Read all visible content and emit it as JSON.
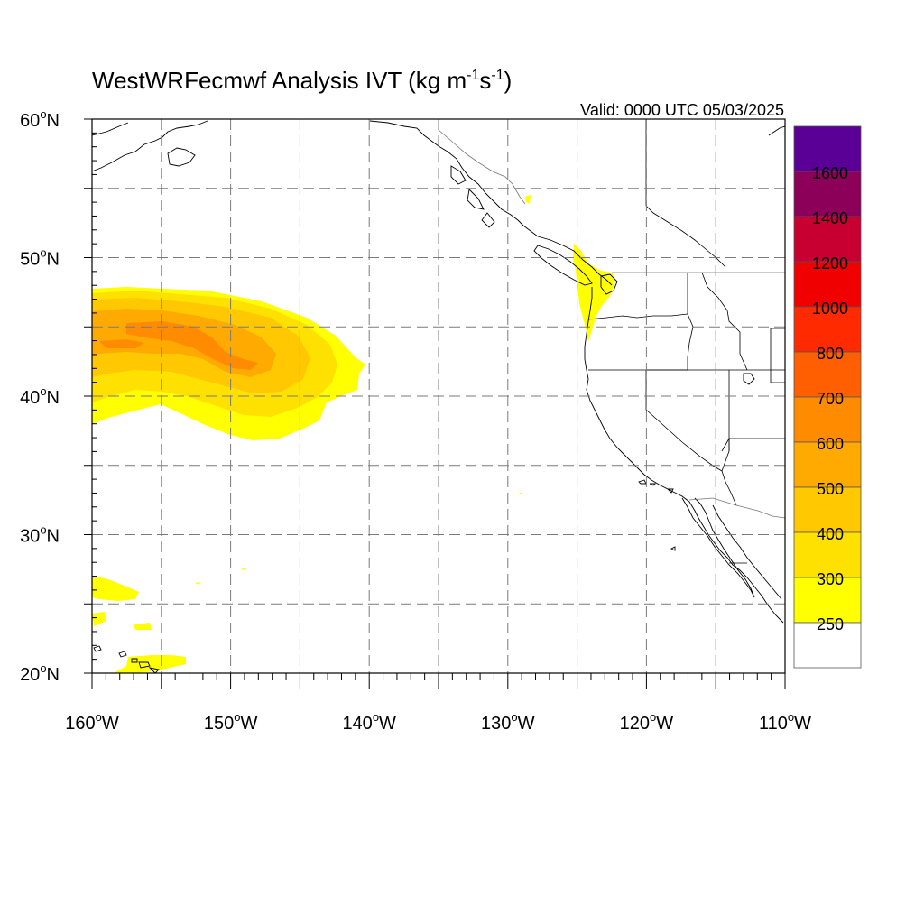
{
  "title": {
    "main": "WestWRFecmwf Analysis IVT (kg m",
    "exp1": "-1",
    "mid": "s",
    "exp2": "-1",
    "end": ")"
  },
  "valid_time": "Valid: 0000 UTC 05/03/2025",
  "map": {
    "lon_range": [
      -160,
      -110
    ],
    "lat_range": [
      20,
      60
    ],
    "lon_ticks": [
      {
        "value": -160,
        "num": "160",
        "suffix": "W"
      },
      {
        "value": -150,
        "num": "150",
        "suffix": "W"
      },
      {
        "value": -140,
        "num": "140",
        "suffix": "W"
      },
      {
        "value": -130,
        "num": "130",
        "suffix": "W"
      },
      {
        "value": -120,
        "num": "120",
        "suffix": "W"
      },
      {
        "value": -110,
        "num": "110",
        "suffix": "W"
      }
    ],
    "lat_ticks": [
      {
        "value": 60,
        "num": "60",
        "suffix": "N"
      },
      {
        "value": 50,
        "num": "50",
        "suffix": "N"
      },
      {
        "value": 40,
        "num": "40",
        "suffix": "N"
      },
      {
        "value": 30,
        "num": "30",
        "suffix": "N"
      },
      {
        "value": 20,
        "num": "20",
        "suffix": "N"
      }
    ],
    "grid_lons": [
      -155,
      -150,
      -145,
      -140,
      -135,
      -130,
      -125,
      -120,
      -115
    ],
    "grid_lats": [
      25,
      30,
      35,
      40,
      45,
      50,
      55
    ]
  },
  "colorbar": {
    "levels": [
      "250",
      "300",
      "400",
      "500",
      "600",
      "700",
      "800",
      "1000",
      "1200",
      "1400",
      "1600"
    ],
    "colors": [
      "#ffffff",
      "#ffff00",
      "#ffe100",
      "#ffc800",
      "#ffaa00",
      "#ff8c00",
      "#ff5f00",
      "#ff2a00",
      "#f00000",
      "#c80032",
      "#8c005a",
      "#5a0096"
    ]
  }
}
